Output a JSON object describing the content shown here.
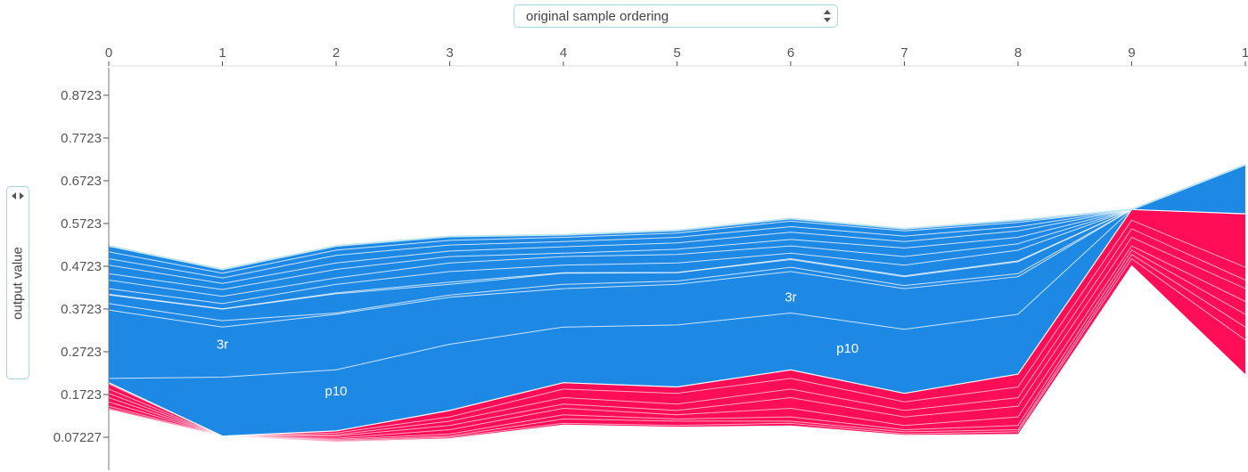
{
  "ordering_select": {
    "value": "original sample ordering"
  },
  "y_select": {
    "value": "output value"
  },
  "chart_data": {
    "type": "area",
    "x_ticks": [
      "0",
      "1",
      "2",
      "3",
      "4",
      "5",
      "6",
      "7",
      "8",
      "9",
      "1"
    ],
    "y_ticks": [
      "0.8723",
      "0.7723",
      "0.6723",
      "0.5723",
      "0.4723",
      "0.3723",
      "0.2723",
      "0.1723",
      "0.07227"
    ],
    "y_tick_values": [
      0.8723,
      0.7723,
      0.6723,
      0.5723,
      0.4723,
      0.3723,
      0.2723,
      0.1723,
      0.07227
    ],
    "ylim": [
      0.005,
      1.0
    ],
    "x": [
      0,
      1,
      2,
      3,
      4,
      5,
      6,
      7,
      8,
      9,
      10
    ],
    "output_value": [
      0.52,
      0.465,
      0.52,
      0.542,
      0.546,
      0.556,
      0.584,
      0.56,
      0.58,
      0.605,
      0.71
    ],
    "base_value_line": [
      0.2,
      0.075,
      0.087,
      0.135,
      0.2,
      0.19,
      0.23,
      0.175,
      0.22,
      0.605,
      0.595
    ],
    "positive_boundaries": [
      [
        0.52,
        0.465,
        0.52,
        0.542,
        0.546,
        0.556,
        0.584,
        0.56,
        0.58,
        0.605,
        0.71
      ],
      [
        0.506,
        0.456,
        0.51,
        0.533,
        0.54,
        0.55,
        0.578,
        0.555,
        0.575,
        0.605,
        0.71
      ],
      [
        0.49,
        0.445,
        0.498,
        0.522,
        0.53,
        0.54,
        0.565,
        0.543,
        0.565,
        0.605,
        0.71
      ],
      [
        0.475,
        0.432,
        0.48,
        0.508,
        0.518,
        0.527,
        0.552,
        0.53,
        0.555,
        0.605,
        0.71
      ],
      [
        0.455,
        0.418,
        0.465,
        0.495,
        0.503,
        0.512,
        0.535,
        0.515,
        0.54,
        0.605,
        0.71
      ],
      [
        0.44,
        0.402,
        0.445,
        0.48,
        0.495,
        0.5,
        0.52,
        0.495,
        0.525,
        0.605,
        0.71
      ],
      [
        0.42,
        0.385,
        0.43,
        0.46,
        0.475,
        0.48,
        0.503,
        0.475,
        0.51,
        0.605,
        0.71
      ],
      [
        0.407,
        0.373,
        0.41,
        0.435,
        0.457,
        0.458,
        0.49,
        0.45,
        0.485,
        0.605,
        0.71
      ],
      [
        0.405,
        0.372,
        0.408,
        0.43,
        0.456,
        0.457,
        0.488,
        0.448,
        0.483,
        0.605,
        0.71
      ],
      [
        0.385,
        0.345,
        0.363,
        0.405,
        0.43,
        0.438,
        0.47,
        0.427,
        0.455,
        0.605,
        0.71
      ],
      [
        0.37,
        0.33,
        0.36,
        0.4,
        0.42,
        0.43,
        0.46,
        0.42,
        0.448,
        0.605,
        0.71
      ],
      [
        0.21,
        0.213,
        0.23,
        0.29,
        0.33,
        0.335,
        0.363,
        0.325,
        0.36,
        0.605,
        0.71
      ],
      [
        0.2,
        0.075,
        0.087,
        0.135,
        0.2,
        0.19,
        0.23,
        0.175,
        0.22,
        0.605,
        0.595
      ]
    ],
    "negative_boundaries": [
      [
        0.2,
        0.075,
        0.087,
        0.135,
        0.2,
        0.19,
        0.23,
        0.175,
        0.22,
        0.605,
        0.595
      ],
      [
        0.197,
        0.075,
        0.082,
        0.12,
        0.185,
        0.175,
        0.21,
        0.155,
        0.19,
        0.58,
        0.47
      ],
      [
        0.185,
        0.075,
        0.078,
        0.11,
        0.165,
        0.15,
        0.185,
        0.135,
        0.165,
        0.56,
        0.44
      ],
      [
        0.175,
        0.075,
        0.075,
        0.1,
        0.15,
        0.135,
        0.165,
        0.12,
        0.145,
        0.54,
        0.42
      ],
      [
        0.165,
        0.075,
        0.07,
        0.09,
        0.14,
        0.125,
        0.14,
        0.1,
        0.12,
        0.52,
        0.39
      ],
      [
        0.155,
        0.075,
        0.067,
        0.08,
        0.125,
        0.115,
        0.12,
        0.09,
        0.1,
        0.51,
        0.36
      ],
      [
        0.145,
        0.075,
        0.065,
        0.075,
        0.115,
        0.11,
        0.11,
        0.085,
        0.09,
        0.5,
        0.33
      ],
      [
        0.14,
        0.075,
        0.063,
        0.072,
        0.105,
        0.1,
        0.105,
        0.08,
        0.085,
        0.49,
        0.3
      ],
      [
        0.138,
        0.075,
        0.062,
        0.07,
        0.102,
        0.097,
        0.1,
        0.078,
        0.08,
        0.475,
        0.22
      ]
    ],
    "labels": [
      {
        "text": "3r",
        "x": 1.0,
        "y": 0.28
      },
      {
        "text": "p10",
        "x": 2.0,
        "y": 0.17
      },
      {
        "text": "3r",
        "x": 6.0,
        "y": 0.39
      },
      {
        "text": "p10",
        "x": 6.5,
        "y": 0.27
      }
    ],
    "colors": {
      "positive": "#1e88e5",
      "negative": "#ff0d57",
      "axis": "#555555",
      "top_edge": "#bde5f2"
    }
  }
}
